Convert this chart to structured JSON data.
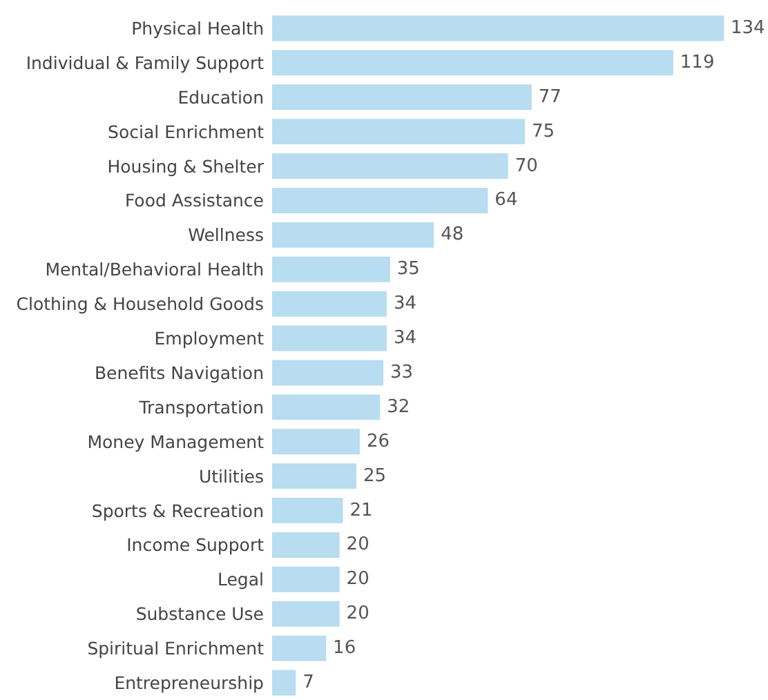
{
  "chart_data": {
    "type": "bar",
    "orientation": "horizontal",
    "data_labels": true,
    "categories": [
      "Physical Health",
      "Individual & Family Support",
      "Education",
      "Social Enrichment",
      "Housing & Shelter",
      "Food Assistance",
      "Wellness",
      "Mental/Behavioral Health",
      "Clothing & Household Goods",
      "Employment",
      "Benefits Navigation",
      "Transportation",
      "Money Management",
      "Utilities",
      "Sports & Recreation",
      "Income Support",
      "Legal",
      "Substance Use",
      "Spiritual Enrichment",
      "Entrepreneurship"
    ],
    "values": [
      134,
      119,
      77,
      75,
      70,
      64,
      48,
      35,
      34,
      34,
      33,
      32,
      26,
      25,
      21,
      20,
      20,
      20,
      16,
      7
    ],
    "color": "#b8dcf0"
  }
}
